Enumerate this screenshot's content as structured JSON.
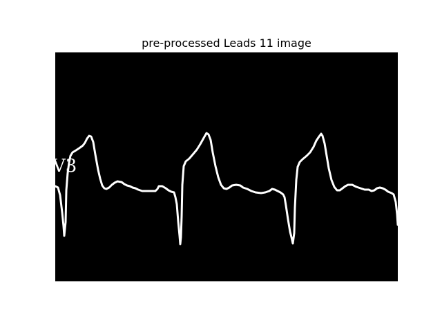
{
  "figure": {
    "title": "pre-processed Leads 11 image",
    "lead_label": "V3",
    "colors": {
      "background": "#ffffff",
      "panel": "#000000",
      "trace": "#ffffff"
    }
  }
}
